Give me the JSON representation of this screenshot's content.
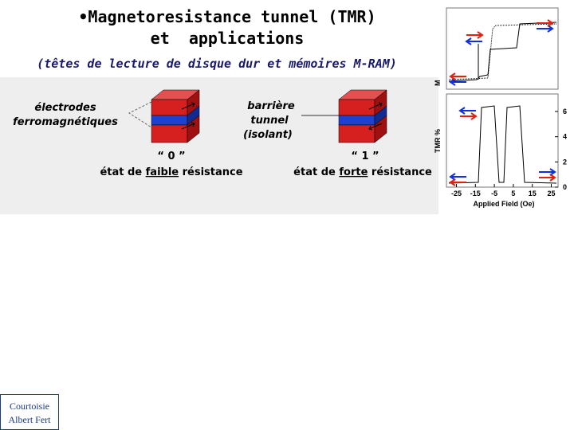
{
  "header": {
    "title_line1": "•Magnetoresistance tunnel (TMR)",
    "title_line2": "et  applications",
    "subtitle": "(têtes de lecture de disque dur et mémoires M-RAM)"
  },
  "diagram": {
    "electrodes_label": [
      "électrodes",
      "ferromagnétiques"
    ],
    "barrier_label": [
      "barrière",
      "tunnel",
      "(isolant)"
    ],
    "state0": {
      "quote": "“ 0 ”",
      "caption": [
        "état de ",
        "faible",
        " résistance"
      ]
    },
    "state1": {
      "quote": "“ 1 ”",
      "caption": [
        "état de ",
        "forte",
        " résistance"
      ]
    }
  },
  "figure": {
    "top_ylabel": "M",
    "bottom_ylabel": "TMR %",
    "yticks": [
      6,
      4,
      2,
      0
    ],
    "xticks": [
      -25,
      -15,
      -5,
      5,
      15,
      25
    ],
    "xlabel": "Applied Field (Oe)"
  },
  "credit": [
    "Courtoisie",
    "Albert Fert"
  ]
}
